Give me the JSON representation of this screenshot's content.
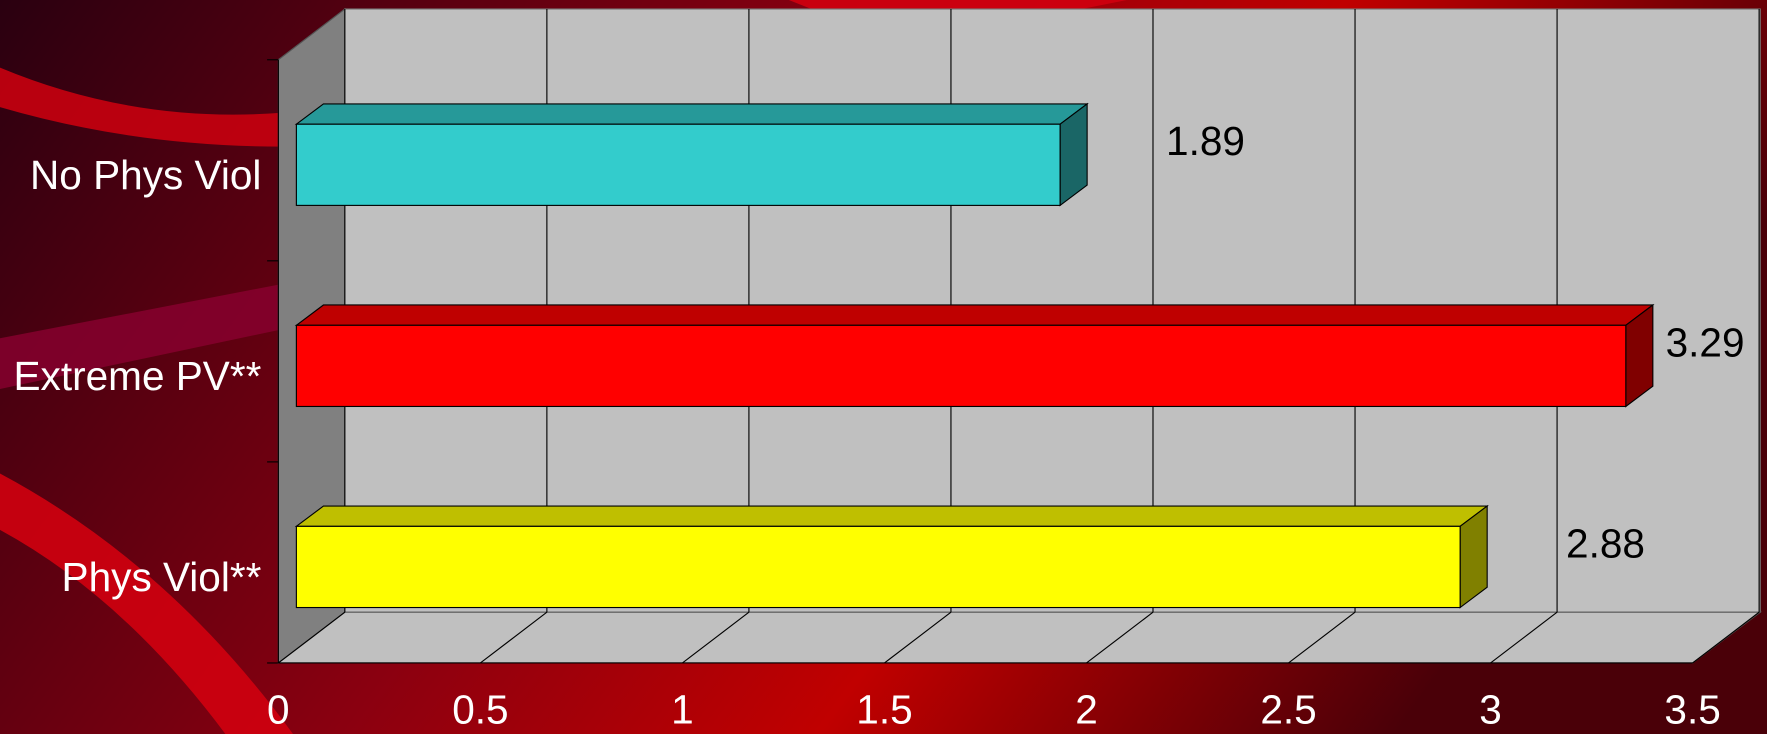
{
  "chart_data": {
    "type": "bar3d-horizontal",
    "categories": [
      "No Phys Viol",
      "Extreme PV**",
      "Phys Viol**"
    ],
    "values": [
      1.89,
      3.29,
      2.88
    ],
    "colors": [
      "#33cccc",
      "#ff0000",
      "#ffff00"
    ],
    "xlim": [
      0,
      3.5
    ],
    "xticks": [
      0,
      0.5,
      1,
      1.5,
      2,
      2.5,
      3,
      3.5
    ],
    "grid": true
  }
}
